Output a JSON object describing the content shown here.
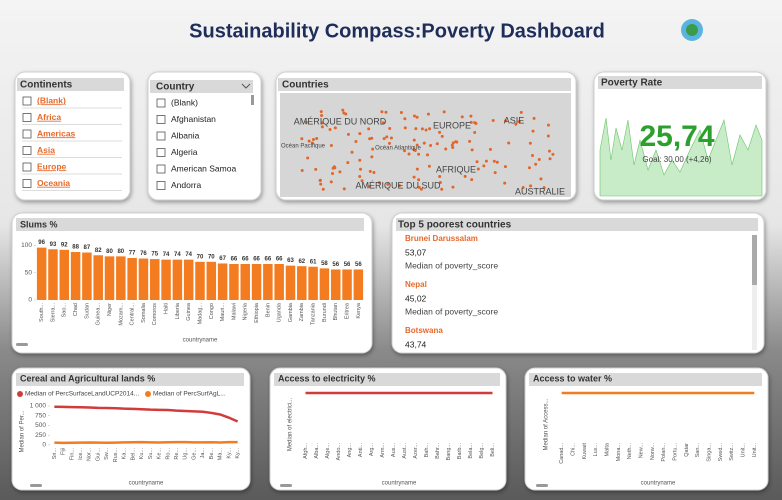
{
  "header": {
    "title": "Sustainability Compass:Poverty Dashboard"
  },
  "slicers": [
    {
      "title": "Continents",
      "items": [
        "(Blank)",
        "Africa",
        "Americas",
        "Asia",
        "Europe",
        "Oceania"
      ]
    },
    {
      "title": "Country",
      "items": [
        "(Blank)",
        "Afghanistan",
        "Albania",
        "Algeria",
        "American Samoa",
        "Andorra"
      ]
    }
  ],
  "map": {
    "title": "Countries",
    "labels": [
      "AMÉRIQUE DU NORD",
      "EUROPE",
      "ASIE",
      "AFRIQUE",
      "AMÉRIQUE DU SUD",
      "Océan Pacifique",
      "Océan Atlantique",
      "AUSTRALIE"
    ]
  },
  "kpi": {
    "title": "Poverty Rate",
    "value": "25,74",
    "goal": "Goal: 30,00 (+4,26)"
  },
  "top5": {
    "title": "Top 5 poorest countries",
    "items": [
      {
        "name": "Brunei Darussalam",
        "value": "53,07",
        "measure": "Median of poverty_score"
      },
      {
        "name": "Nepal",
        "value": "45,02",
        "measure": "Median of poverty_score"
      },
      {
        "name": "Botswana",
        "value": "43,74"
      }
    ]
  },
  "chart_data": [
    {
      "type": "bar",
      "title": "Slums %",
      "x_label": "countryname",
      "color": "#f47c20",
      "categories": [
        "South...",
        "Sierra...",
        "Sao...",
        "Chad",
        "Sudan",
        "Guinea...",
        "Niger",
        "Mozam...",
        "Central...",
        "Somalia",
        "Comoros",
        "Haiti",
        "Liberia",
        "Guinea",
        "Madag...",
        "Congo",
        "Mauri...",
        "Malawi",
        "Nigeria",
        "Ethiopia",
        "Benin",
        "Uganda",
        "Gambia",
        "Zambia",
        "Tanzania",
        "Burundi",
        "Bhutan",
        "Eritrea",
        "Kenya"
      ],
      "values": [
        96,
        93,
        92,
        88,
        87,
        82,
        80,
        80,
        77,
        76,
        75,
        74,
        74,
        74,
        70,
        70,
        67,
        66,
        66,
        66,
        66,
        66,
        63,
        62,
        61,
        58,
        56,
        56,
        56
      ],
      "ylim": [
        0,
        110
      ],
      "yticks": [
        0,
        50,
        100
      ]
    },
    {
      "type": "line",
      "title": "Cereal and Agricultural lands %",
      "x_label": "countryname",
      "y_label": "Median of Per...",
      "categories": [
        "Sri...",
        "Fiji",
        "Fin...",
        "Ice...",
        "Nor...",
        "Gui...",
        "Sw...",
        "Rus...",
        "Ka...",
        "Bel...",
        "Ku...",
        "Su...",
        "Ke...",
        "Ro...",
        "Re...",
        "Ug...",
        "Ge...",
        "Ja...",
        "Be...",
        "Ma...",
        "Ky...",
        "Ky..."
      ],
      "series": [
        {
          "name": "Median of PercSurfaceLandUCP2014...",
          "color": "#d13b3b",
          "values": [
            980,
            975,
            970,
            965,
            960,
            950,
            945,
            940,
            930,
            925,
            915,
            905,
            900,
            895,
            880,
            870,
            860,
            850,
            820,
            780,
            700,
            600
          ]
        },
        {
          "name": "Median of PercSurfAgL...",
          "color": "#f47c20",
          "values": [
            60,
            55,
            58,
            62,
            65,
            60,
            58,
            62,
            66,
            70,
            72,
            68,
            65,
            70,
            72,
            75,
            68,
            66,
            70,
            65,
            72,
            75
          ]
        }
      ],
      "ylim": [
        0,
        1100
      ],
      "yticks": [
        0,
        250,
        500,
        750,
        {
          "value": 1000,
          "label": "1 000"
        }
      ]
    },
    {
      "type": "line",
      "title": "Access to electricity %",
      "x_label": "countryname",
      "y_label": "Median of electrici...",
      "color": "#d13b3b",
      "categories": [
        "Afgh...",
        "Alba...",
        "Alge...",
        "Ando...",
        "Ang...",
        "Anti...",
        "Arg...",
        "Arm...",
        "Aus...",
        "Aust...",
        "Azer...",
        "Bah...",
        "Bahr...",
        "Bang...",
        "Barb...",
        "Bela...",
        "Belg...",
        "Beli..."
      ],
      "values": [
        100,
        100,
        100,
        100,
        100,
        100,
        100,
        100,
        100,
        100,
        100,
        100,
        100,
        100,
        100,
        100,
        100,
        100
      ],
      "ylim": [
        0,
        100
      ]
    },
    {
      "type": "line",
      "title": "Access to water %",
      "x_label": "countryname",
      "y_label": "Median of Access...",
      "color": "#f47c20",
      "categories": [
        "Canad...",
        "Chi...",
        "Kuwait",
        "Lux...",
        "Malta",
        "Mona...",
        "Neth...",
        "New...",
        "Norw...",
        "Polan...",
        "Portu...",
        "Qatar",
        "San...",
        "Singa...",
        "Swed...",
        "Switz...",
        "Unit...",
        "Unit..."
      ],
      "values": [
        100,
        100,
        100,
        100,
        100,
        100,
        100,
        100,
        100,
        100,
        100,
        100,
        100,
        100,
        100,
        100,
        100,
        100
      ],
      "ylim": [
        0,
        100
      ]
    }
  ]
}
